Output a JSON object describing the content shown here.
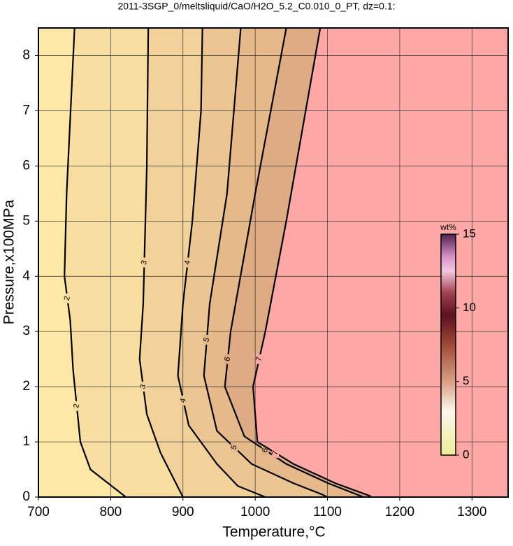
{
  "chart_data": {
    "type": "contour",
    "title": "2011-3SGP_0/meltsliquid/CaO/H2O_5.2_C0.010_0_PT, dz=0.1:",
    "x_label": "Temperature,°C",
    "y_label": "Pressure,x100MPa",
    "xlim": [
      700,
      1350
    ],
    "ylim": [
      0,
      8.5
    ],
    "xticks": [
      700,
      800,
      900,
      1000,
      1100,
      1200,
      1300
    ],
    "yticks": [
      0,
      1,
      2,
      3,
      4,
      5,
      6,
      7,
      8
    ],
    "grid": true,
    "background": "#fde8a8",
    "series": [
      {
        "level": 2,
        "color": "#f8dea0",
        "x": [
          750,
          739,
          736,
          744,
          748,
          758,
          772,
          821
        ],
        "y": [
          8.5,
          5.5,
          4,
          3.2,
          2.3,
          1,
          0.5,
          0
        ]
      },
      {
        "level": 3,
        "color": "#f2d29a",
        "x": [
          852,
          850,
          848,
          845,
          840,
          850,
          869,
          900
        ],
        "y": [
          8.5,
          6,
          5,
          3.5,
          2.5,
          1.5,
          0.8,
          0
        ]
      },
      {
        "level": 4,
        "color": "#ecc692",
        "x": [
          927,
          925,
          913,
          900,
          893,
          908,
          947,
          976,
          1014
        ],
        "y": [
          8.5,
          7,
          5,
          3.5,
          2.2,
          1.3,
          0.6,
          0.2,
          0
        ]
      },
      {
        "level": 5,
        "color": "#e6b98a",
        "x": [
          980,
          961,
          937,
          929,
          947,
          995,
          1053,
          1092,
          1100
        ],
        "y": [
          8.5,
          5.5,
          3.5,
          2.2,
          1.2,
          0.6,
          0.25,
          0.05,
          0
        ]
      },
      {
        "level": 6,
        "color": "#dfab84",
        "x": [
          1043,
          1000,
          966,
          958,
          985,
          1043,
          1101,
          1140,
          1150
        ],
        "y": [
          8.5,
          5.5,
          3,
          2,
          1.1,
          0.6,
          0.25,
          0.05,
          0
        ]
      },
      {
        "level": 7,
        "color": "#fda8a6",
        "x": [
          1090,
          1043,
          1014,
          997,
          1003,
          1053,
          1111,
          1159,
          1160
        ],
        "y": [
          8.5,
          5,
          3,
          2,
          1,
          0.6,
          0.25,
          0.02,
          0
        ]
      }
    ],
    "colorbar": {
      "label": "wt%",
      "zlim": [
        0,
        15
      ],
      "zticks": [
        0,
        5,
        10,
        15
      ],
      "colormap": [
        {
          "value": 0,
          "color": "#eeee99"
        },
        {
          "value": 3,
          "color": "#fbf6ec"
        },
        {
          "value": 5,
          "color": "#d9a085"
        },
        {
          "value": 7.5,
          "color": "#a04838"
        },
        {
          "value": 9.5,
          "color": "#5c1020"
        },
        {
          "value": 11,
          "color": "#a04050"
        },
        {
          "value": 12.5,
          "color": "#f4c8e0"
        },
        {
          "value": 13.5,
          "color": "#d890c8"
        },
        {
          "value": 15,
          "color": "#502050"
        }
      ]
    }
  }
}
